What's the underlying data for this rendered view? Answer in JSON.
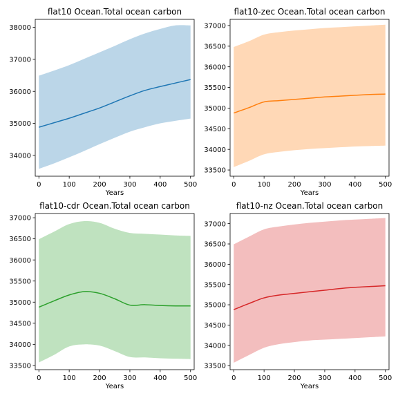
{
  "chart_data": [
    {
      "type": "area",
      "title": "flat10 Ocean.Total ocean carbon",
      "xlabel": "Years",
      "ylabel": "",
      "xlim": [
        -12,
        512
      ],
      "ylim": [
        33350,
        38250
      ],
      "xticks": [
        0,
        100,
        200,
        300,
        400,
        500
      ],
      "yticks": [
        34000,
        35000,
        36000,
        37000,
        38000
      ],
      "grid": false,
      "color": "#1f77b4",
      "x": [
        0,
        50,
        100,
        150,
        200,
        250,
        300,
        350,
        400,
        450,
        500
      ],
      "series": [
        {
          "mean": [
            34880,
            35020,
            35160,
            35320,
            35480,
            35670,
            35860,
            36030,
            36150,
            36260,
            36370
          ],
          "lower": [
            33580,
            33750,
            33940,
            34140,
            34350,
            34550,
            34740,
            34880,
            35000,
            35080,
            35150
          ],
          "upper": [
            36490,
            36650,
            36820,
            37020,
            37220,
            37420,
            37630,
            37810,
            37950,
            38060,
            38060
          ]
        }
      ]
    },
    {
      "type": "area",
      "title": "flat10-zec Ocean.Total ocean carbon",
      "xlabel": "Years",
      "ylabel": "",
      "xlim": [
        -12,
        512
      ],
      "ylim": [
        33350,
        37150
      ],
      "xticks": [
        0,
        100,
        200,
        300,
        400,
        500
      ],
      "yticks": [
        33500,
        34000,
        34500,
        35000,
        35500,
        36000,
        36500,
        37000
      ],
      "grid": false,
      "color": "#ff7f0e",
      "x": [
        0,
        50,
        100,
        150,
        200,
        250,
        300,
        350,
        400,
        450,
        500
      ],
      "series": [
        {
          "mean": [
            34880,
            35010,
            35150,
            35180,
            35210,
            35240,
            35270,
            35290,
            35310,
            35330,
            35340
          ],
          "lower": [
            33570,
            33720,
            33880,
            33940,
            33980,
            34010,
            34030,
            34050,
            34070,
            34080,
            34090
          ],
          "upper": [
            36480,
            36620,
            36780,
            36840,
            36880,
            36910,
            36940,
            36960,
            36980,
            37000,
            37020
          ]
        }
      ]
    },
    {
      "type": "area",
      "title": "flat10-cdr Ocean.Total ocean carbon",
      "xlabel": "Years",
      "ylabel": "",
      "xlim": [
        -12,
        512
      ],
      "ylim": [
        33400,
        37100
      ],
      "xticks": [
        0,
        100,
        200,
        300,
        400,
        500
      ],
      "yticks": [
        33500,
        34000,
        34500,
        35000,
        35500,
        36000,
        36500,
        37000
      ],
      "grid": false,
      "color": "#2ca02c",
      "x": [
        0,
        50,
        100,
        150,
        200,
        250,
        300,
        350,
        400,
        450,
        500
      ],
      "series": [
        {
          "mean": [
            34880,
            35030,
            35170,
            35250,
            35210,
            35080,
            34930,
            34940,
            34920,
            34910,
            34910
          ],
          "lower": [
            33570,
            33750,
            33950,
            34000,
            33970,
            33840,
            33700,
            33690,
            33670,
            33660,
            33650
          ],
          "upper": [
            36490,
            36670,
            36850,
            36920,
            36880,
            36740,
            36640,
            36620,
            36600,
            36580,
            36570
          ]
        }
      ]
    },
    {
      "type": "area",
      "title": "flat10-nz Ocean.Total ocean carbon",
      "xlabel": "Years",
      "ylabel": "",
      "xlim": [
        -12,
        512
      ],
      "ylim": [
        33400,
        37250
      ],
      "xticks": [
        0,
        100,
        200,
        300,
        400,
        500
      ],
      "yticks": [
        33500,
        34000,
        34500,
        35000,
        35500,
        36000,
        36500,
        37000
      ],
      "grid": false,
      "color": "#d62728",
      "x": [
        0,
        50,
        100,
        150,
        200,
        250,
        300,
        350,
        400,
        450,
        500
      ],
      "series": [
        {
          "mean": [
            34880,
            35030,
            35170,
            35240,
            35280,
            35320,
            35360,
            35400,
            35430,
            35450,
            35470
          ],
          "lower": [
            33570,
            33760,
            33940,
            34030,
            34080,
            34120,
            34140,
            34160,
            34180,
            34200,
            34220
          ],
          "upper": [
            36490,
            36680,
            36860,
            36930,
            36980,
            37020,
            37050,
            37080,
            37100,
            37120,
            37140
          ]
        }
      ]
    }
  ]
}
